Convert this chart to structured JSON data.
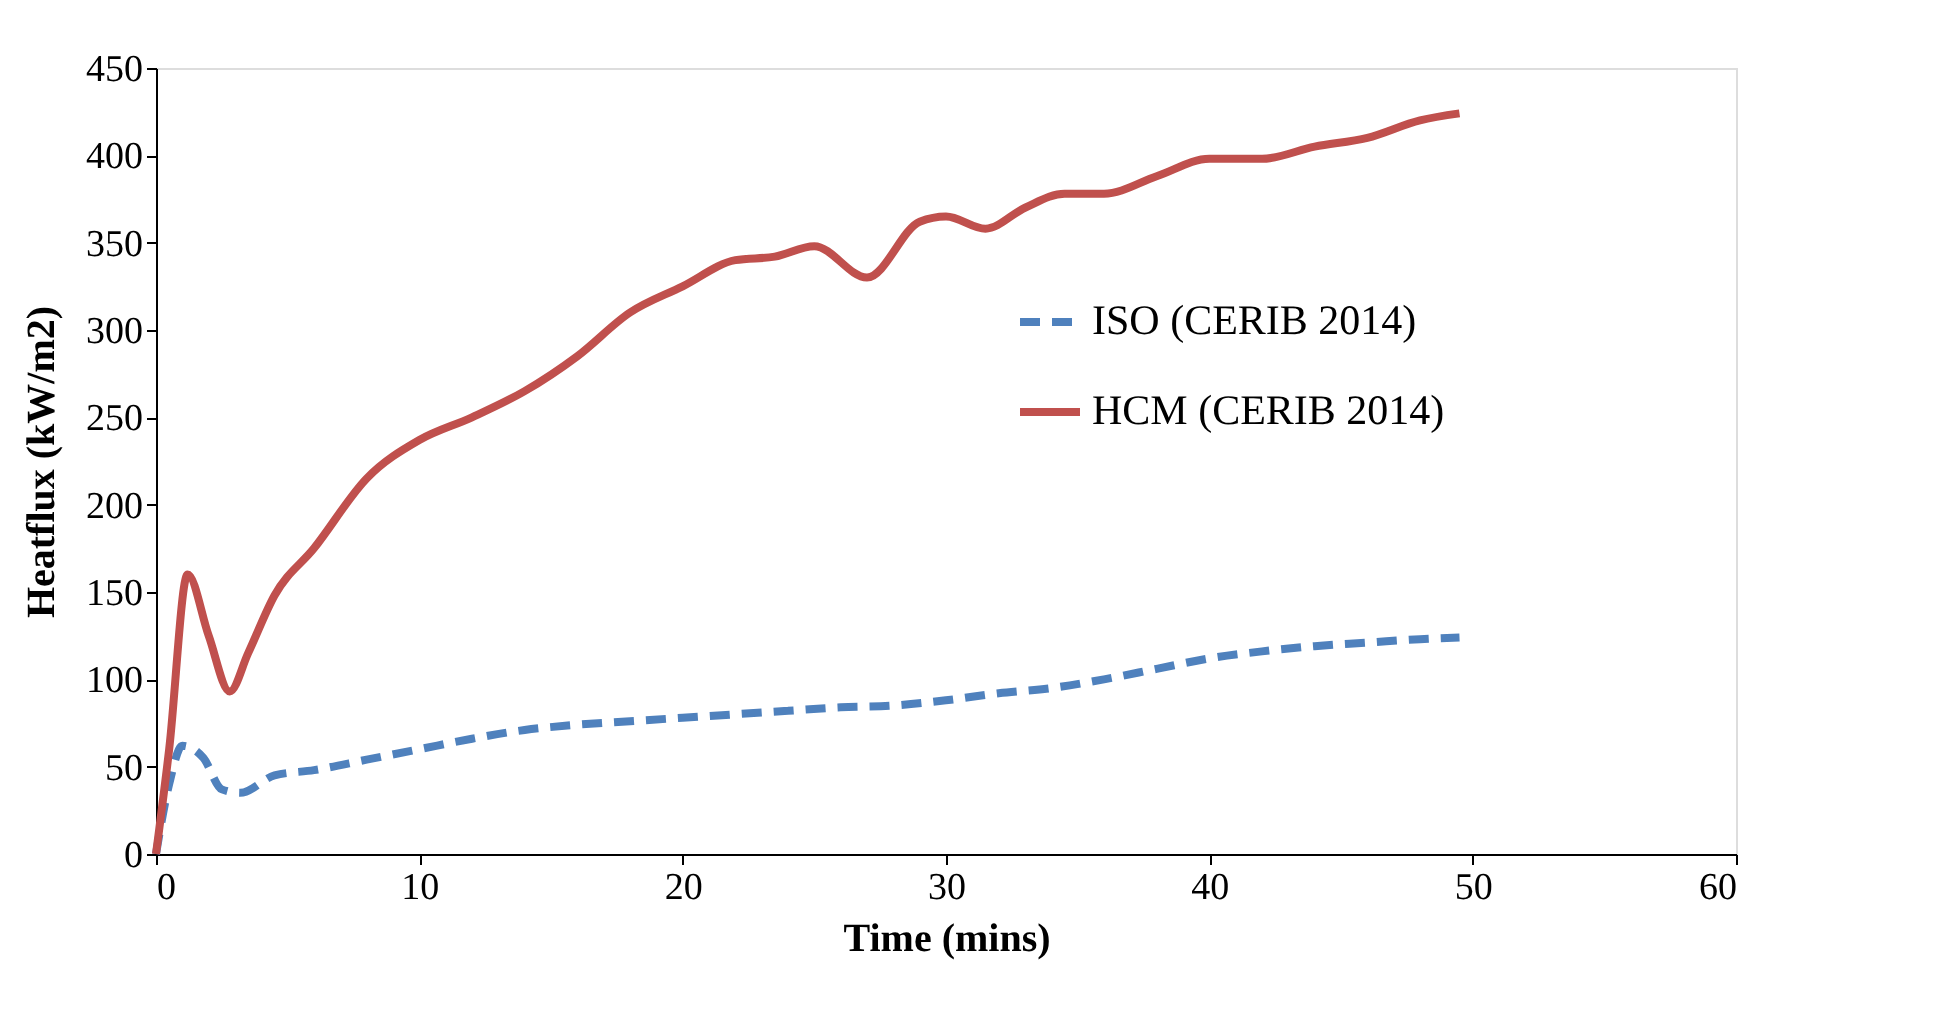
{
  "chart_data": {
    "type": "line",
    "xlabel": "Time (mins)",
    "ylabel": "Heatflux (kW/m2)",
    "xlim": [
      0,
      60
    ],
    "xticks": [
      0,
      10,
      20,
      30,
      40,
      50,
      60
    ],
    "ylim": [
      0,
      450
    ],
    "yticks": [
      0,
      50,
      100,
      150,
      200,
      250,
      300,
      350,
      400,
      450
    ],
    "grid": false,
    "legend": "right",
    "marker": "none",
    "series": [
      {
        "name": "ISO (CERIB 2014)",
        "color": "#4f81bd",
        "line_style": "dashed",
        "x": [
          0,
          0.5,
          1,
          1.8,
          2.5,
          3.2,
          4.5,
          6,
          8,
          10,
          12,
          14,
          16,
          18,
          20,
          22,
          24,
          26,
          28,
          30,
          32,
          34,
          36,
          38,
          40,
          42,
          44,
          46,
          48,
          49.5
        ],
        "values": [
          0,
          40,
          62,
          55,
          37,
          35,
          45,
          48,
          54,
          60,
          66,
          71,
          74,
          76,
          78,
          80,
          82,
          84,
          85,
          88,
          92,
          95,
          100,
          106,
          112,
          116,
          119,
          121,
          123,
          124
        ]
      },
      {
        "name": "HCM (CERIB 2014)",
        "color": "#c0504d",
        "line_style": "solid",
        "x": [
          0,
          0.5,
          1.2,
          2,
          2.8,
          3.5,
          4.5,
          6,
          8,
          10,
          12,
          14,
          16,
          18,
          20,
          22,
          23.5,
          25,
          27,
          29,
          30,
          31.5,
          33,
          34.5,
          36,
          38,
          40,
          42,
          44,
          46,
          48,
          49.5
        ],
        "values": [
          0,
          60,
          160,
          125,
          93,
          115,
          148,
          175,
          215,
          237,
          250,
          265,
          285,
          310,
          325,
          340,
          342,
          348,
          330,
          362,
          365,
          358,
          370,
          378,
          378,
          388,
          398,
          398,
          405,
          410,
          420,
          424
        ]
      }
    ]
  }
}
